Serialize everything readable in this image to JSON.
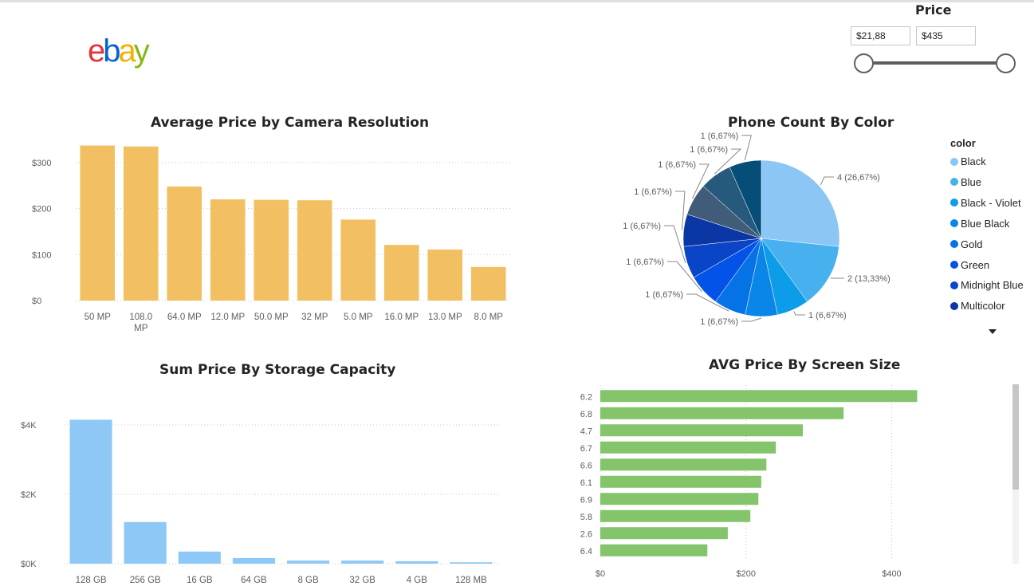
{
  "logo": {
    "e": "e",
    "b": "b",
    "a": "a",
    "y": "y"
  },
  "slicer": {
    "title": "Price",
    "min_value": "$21,88",
    "max_value": "$435",
    "range_fraction": [
      0,
      1
    ]
  },
  "chart_data": [
    {
      "type": "bar",
      "title": "Average Price by Camera Resolution",
      "categories": [
        "50 MP",
        "108.0 MP",
        "64.0 MP",
        "12.0 MP",
        "50.0 MP",
        "32 MP",
        "5.0 MP",
        "16.0 MP",
        "13.0 MP",
        "8.0 MP"
      ],
      "values": [
        337,
        335,
        248,
        220,
        219,
        218,
        176,
        121,
        111,
        73
      ],
      "yticks": [
        "$0",
        "$100",
        "$200",
        "$300"
      ],
      "ylim": [
        0,
        350
      ],
      "color": "#F2C063",
      "grid": true
    },
    {
      "type": "pie",
      "title": "Phone Count By Color",
      "legend_title": "color",
      "legend_position": "right",
      "slices": [
        {
          "name": "Black",
          "value": 4,
          "label": "4 (26,67%)",
          "color": "#8BC6F5"
        },
        {
          "name": "Blue",
          "value": 2,
          "label": "2 (13,33%)",
          "color": "#47B0EE"
        },
        {
          "name": "Black - Violet",
          "value": 1,
          "label": "1 (6,67%)",
          "color": "#0C9CE8"
        },
        {
          "name": "Blue Black",
          "value": 1,
          "label": "1 (6,67%)",
          "color": "#0A85E8"
        },
        {
          "name": "Gold",
          "value": 1,
          "label": "1 (6,67%)",
          "color": "#0572E6"
        },
        {
          "name": "Green",
          "value": 1,
          "label": "1 (6,67%)",
          "color": "#0453E8"
        },
        {
          "name": "Midnight Blue",
          "value": 1,
          "label": "1 (6,67%)",
          "color": "#0A45C8"
        },
        {
          "name": "Multicolor",
          "value": 1,
          "label": "1 (6,67%)",
          "color": "#0B36A6"
        },
        {
          "name": "",
          "value": 1,
          "label": "1 (6,67%)",
          "color": "#405C78"
        },
        {
          "name": "",
          "value": 1,
          "label": "1 (6,67%)",
          "color": "#255A7D"
        },
        {
          "name": "",
          "value": 1,
          "label": "1 (6,67%)",
          "color": "#064E78"
        }
      ]
    },
    {
      "type": "bar",
      "title": "Sum Price By Storage Capacity",
      "categories": [
        "128 GB",
        "256 GB",
        "16 GB",
        "64 GB",
        "8 GB",
        "32 GB",
        "4 GB",
        "128 MB"
      ],
      "values": [
        4150,
        1200,
        350,
        160,
        90,
        90,
        70,
        40
      ],
      "yticks": [
        "$0K",
        "$2K",
        "$4K"
      ],
      "ylim": [
        0,
        4500
      ],
      "color": "#8EC8F6",
      "grid": true
    },
    {
      "type": "bar",
      "orientation": "horizontal",
      "title": "AVG Price By Screen Size",
      "categories": [
        "6.2",
        "6.8",
        "4.7",
        "6.7",
        "6.6",
        "6.1",
        "6.9",
        "5.8",
        "2.6",
        "6.4"
      ],
      "values": [
        435,
        334,
        278,
        241,
        228,
        221,
        217,
        206,
        175,
        147
      ],
      "xticks": [
        "$0",
        "$200",
        "$400"
      ],
      "xlim": [
        0,
        470
      ],
      "color": "#84C46A",
      "grid": true
    }
  ]
}
